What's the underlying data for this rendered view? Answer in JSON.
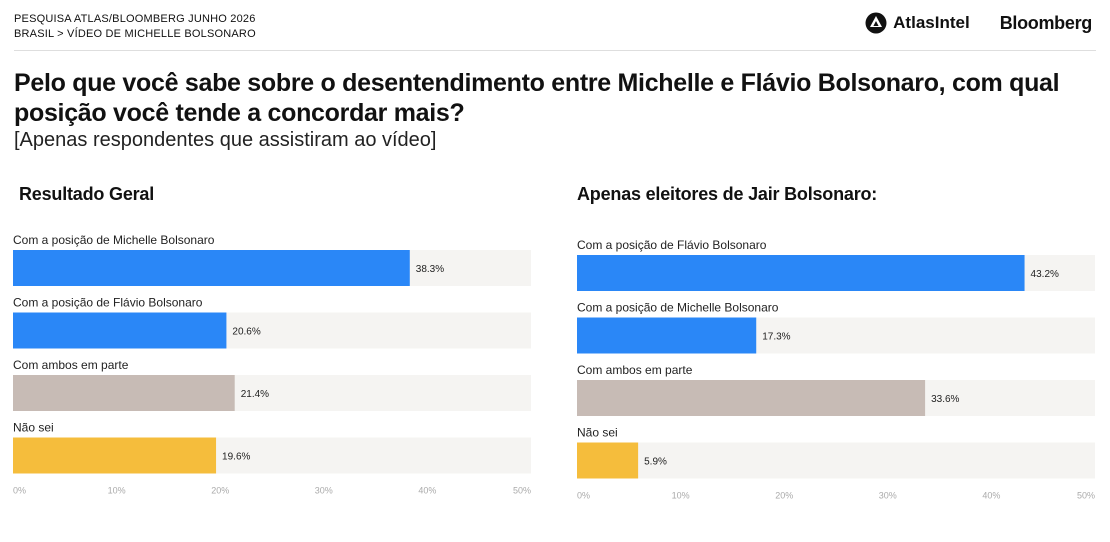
{
  "header": {
    "line1": "PESQUISA ATLAS/BLOOMBERG JUNHO 2026",
    "line2": "BRASIL > VÍDEO DE MICHELLE BOLSONARO"
  },
  "brands": {
    "atlas": "AtlasIntel",
    "bloomberg": "Bloomberg"
  },
  "question": "Pelo que você sabe sobre o desentendimento entre Michelle e Flávio Bolsonaro, com qual posição você tende a concordar mais?",
  "note": "[Apenas respondentes que assistiram ao vídeo]",
  "colors": {
    "blue": "#2a87f7",
    "beige": "#c7bbb5",
    "yellow": "#f5bd3c",
    "track": "#f5f4f2"
  },
  "chart_data": [
    {
      "type": "bar",
      "orientation": "horizontal",
      "title": "Resultado Geral",
      "categories": [
        "Com a posição de Michelle Bolsonaro",
        "Com a posição de Flávio Bolsonaro",
        "Com ambos em parte",
        "Não sei"
      ],
      "values": [
        38.3,
        20.6,
        21.4,
        19.6
      ],
      "value_labels": [
        "38.3%",
        "20.6%",
        "21.4%",
        "19.6%"
      ],
      "bar_colors": [
        "#2a87f7",
        "#2a87f7",
        "#c7bbb5",
        "#f5bd3c"
      ],
      "xlim": [
        0,
        50
      ],
      "xticks": [
        "0%",
        "10%",
        "20%",
        "30%",
        "40%",
        "50%"
      ],
      "grid": false,
      "legend": "none"
    },
    {
      "type": "bar",
      "orientation": "horizontal",
      "title": "Apenas eleitores de Jair Bolsonaro:",
      "categories": [
        "Com a posição de Flávio Bolsonaro",
        "Com a posição de Michelle Bolsonaro",
        "Com ambos em parte",
        "Não sei"
      ],
      "values": [
        43.2,
        17.3,
        33.6,
        5.9
      ],
      "value_labels": [
        "43.2%",
        "17.3%",
        "33.6%",
        "5.9%"
      ],
      "bar_colors": [
        "#2a87f7",
        "#2a87f7",
        "#c7bbb5",
        "#f5bd3c"
      ],
      "xlim": [
        0,
        50
      ],
      "xticks": [
        "0%",
        "10%",
        "20%",
        "30%",
        "40%",
        "50%"
      ],
      "grid": false,
      "legend": "none"
    }
  ]
}
